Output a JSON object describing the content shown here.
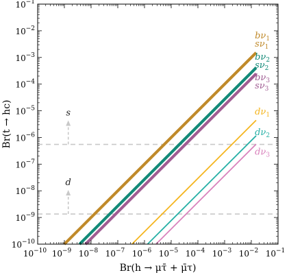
{
  "chart_data": {
    "type": "line",
    "xlabel": "Br(h → μτ̄ + μ̄τ)",
    "ylabel": "Br(t → hc)",
    "xscale": "log",
    "yscale": "log",
    "xlim": [
      1e-10,
      0.1
    ],
    "ylim": [
      1e-10,
      0.1
    ],
    "x_ticks": [
      {
        "base": "10",
        "exp": "−10"
      },
      {
        "base": "10",
        "exp": "−9"
      },
      {
        "base": "10",
        "exp": "−8"
      },
      {
        "base": "10",
        "exp": "−7"
      },
      {
        "base": "10",
        "exp": "−6"
      },
      {
        "base": "10",
        "exp": "−5"
      },
      {
        "base": "10",
        "exp": "−4"
      },
      {
        "base": "10",
        "exp": "−3"
      },
      {
        "base": "10",
        "exp": "−2"
      },
      {
        "base": "10",
        "exp": "−1"
      }
    ],
    "y_ticks": [
      {
        "base": "10",
        "exp": "−10"
      },
      {
        "base": "10",
        "exp": "−9"
      },
      {
        "base": "10",
        "exp": "−8"
      },
      {
        "base": "10",
        "exp": "−7"
      },
      {
        "base": "10",
        "exp": "−6"
      },
      {
        "base": "10",
        "exp": "−5"
      },
      {
        "base": "10",
        "exp": "−4"
      },
      {
        "base": "10",
        "exp": "−3"
      },
      {
        "base": "10",
        "exp": "−2"
      },
      {
        "base": "10",
        "exp": "−1"
      }
    ],
    "grid": false,
    "series": [
      {
        "name": "bν₁",
        "color": "#c08a2a",
        "width": "thick",
        "x": [
          1e-09,
          0.0151
        ],
        "y": [
          1e-10,
          0.00151
        ]
      },
      {
        "name": "sν₁",
        "color": "#c08a2a",
        "width": "thick",
        "x": [
          1e-09,
          0.0151
        ],
        "y": [
          1e-10,
          0.00151
        ]
      },
      {
        "name": "bν₂",
        "color": "#138a78",
        "width": "thick",
        "x": [
          3.7e-09,
          0.0151
        ],
        "y": [
          1e-10,
          0.00041
        ]
      },
      {
        "name": "sν₂",
        "color": "#138a78",
        "width": "thick",
        "x": [
          3.7e-09,
          0.0151
        ],
        "y": [
          1e-10,
          0.00041
        ]
      },
      {
        "name": "bν₃",
        "color": "#a05d93",
        "width": "thick",
        "x": [
          6.2e-09,
          0.0151
        ],
        "y": [
          1e-10,
          0.000245
        ]
      },
      {
        "name": "sν₃",
        "color": "#a05d93",
        "width": "thick",
        "x": [
          6.2e-09,
          0.0151
        ],
        "y": [
          1e-10,
          0.000245
        ]
      },
      {
        "name": "dν₁",
        "color": "#f5b51e",
        "width": "thin",
        "x": [
          3.4e-07,
          0.0151
        ],
        "y": [
          1e-10,
          4.4e-06
        ]
      },
      {
        "name": "dν₂",
        "color": "#27b0a6",
        "width": "thin",
        "x": [
          1.3e-06,
          0.0151
        ],
        "y": [
          1e-10,
          1.16e-06
        ]
      },
      {
        "name": "dν₃",
        "color": "#d982bc",
        "width": "thin",
        "x": [
          2.7e-06,
          0.0151
        ],
        "y": [
          1e-10,
          5.6e-07
        ]
      }
    ],
    "series_labels": [
      {
        "text": "bν",
        "sub": "1",
        "color": "#c08a2a",
        "y": 0.0065
      },
      {
        "text": "sν",
        "sub": "1",
        "color": "#c08a2a",
        "y": 0.0032
      },
      {
        "text": "bν",
        "sub": "2",
        "color": "#138a78",
        "y": 0.00105
      },
      {
        "text": "sν",
        "sub": "2",
        "color": "#138a78",
        "y": 0.00052
      },
      {
        "text": "bν",
        "sub": "3",
        "color": "#a05d93",
        "y": 0.000175
      },
      {
        "text": "sν",
        "sub": "3",
        "color": "#a05d93",
        "y": 8.6e-05
      },
      {
        "text": "dν",
        "sub": "1",
        "color": "#f5b51e",
        "y": 9.3e-06
      },
      {
        "text": "dν",
        "sub": "2",
        "color": "#27b0a6",
        "y": 1.55e-06
      },
      {
        "text": "dν",
        "sub": "3",
        "color": "#d982bc",
        "y": 2.9e-07
      }
    ],
    "horizontal_bounds": [
      {
        "label": "s",
        "y": 5.5e-07,
        "color": "#c8c8c8",
        "style": "dashed",
        "arrow_x": 1.4e-09
      },
      {
        "label": "d",
        "y": 1.35e-09,
        "color": "#c8c8c8",
        "style": "dashed",
        "arrow_x": 1.4e-09
      }
    ]
  }
}
